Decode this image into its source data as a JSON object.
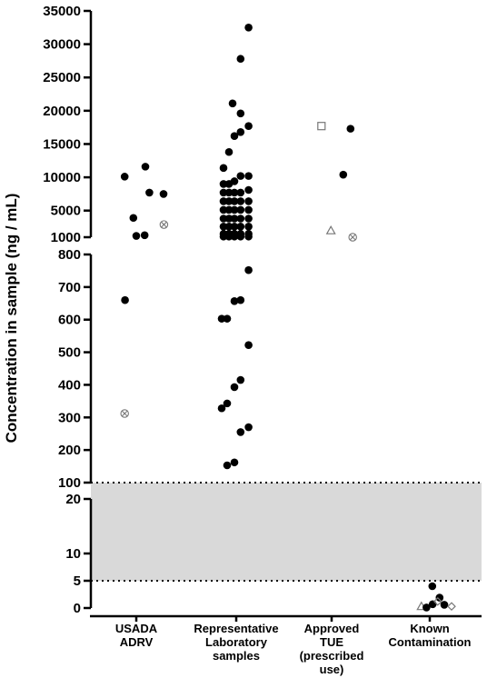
{
  "chart_data": {
    "type": "scatter",
    "ylabel": "Concentration in sample (ng / mL)",
    "categories": [
      [
        "USADA",
        "ADRV"
      ],
      [
        "Representative",
        "Laboratory",
        "samples"
      ],
      [
        "Approved",
        "TUE",
        "(prescribed",
        "use)"
      ],
      [
        "Known",
        "Contamination"
      ]
    ],
    "y_segments": [
      {
        "name": "low",
        "range": [
          0,
          20
        ],
        "ticks": [
          0,
          5,
          10,
          20
        ],
        "tick_labels": [
          "0",
          "5",
          "10",
          "20"
        ]
      },
      {
        "name": "mid",
        "range": [
          100,
          800
        ],
        "ticks": [
          100,
          200,
          300,
          400,
          500,
          600,
          700,
          800
        ],
        "tick_labels": [
          "100",
          "200",
          "300",
          "400",
          "500",
          "600",
          "700",
          "800"
        ]
      },
      {
        "name": "high",
        "range": [
          1000,
          35000
        ],
        "ticks": [
          1000,
          5000,
          10000,
          15000,
          20000,
          25000,
          30000,
          35000
        ],
        "tick_labels": [
          "1000",
          "5000",
          "10000",
          "15000",
          "20000",
          "25000",
          "30000",
          "35000"
        ]
      }
    ],
    "shaded_band": [
      5,
      100
    ],
    "dotted_lines": [
      5,
      100
    ],
    "points": [
      {
        "c": 0,
        "dx": -0.32,
        "y": 10100,
        "m": "filled"
      },
      {
        "c": 0,
        "dx": 0.25,
        "y": 11600,
        "m": "filled"
      },
      {
        "c": 0,
        "dx": -0.08,
        "y": 3900,
        "m": "filled"
      },
      {
        "c": 0,
        "dx": 0.36,
        "y": 7700,
        "m": "filled"
      },
      {
        "c": 0,
        "dx": 0.75,
        "y": 7500,
        "m": "filled"
      },
      {
        "c": 0,
        "dx": 0.0,
        "y": 1200,
        "m": "filled"
      },
      {
        "c": 0,
        "dx": 0.23,
        "y": 1300,
        "m": "filled"
      },
      {
        "c": 0,
        "dx": 0.76,
        "y": 2900,
        "m": "circle-x"
      },
      {
        "c": 0,
        "dx": -0.31,
        "y": 660,
        "m": "filled"
      },
      {
        "c": 0,
        "dx": -0.32,
        "y": 312,
        "m": "circle-x"
      },
      {
        "c": 1,
        "dx": 0.34,
        "y": 32500,
        "m": "filled"
      },
      {
        "c": 1,
        "dx": 0.12,
        "y": 27800,
        "m": "filled"
      },
      {
        "c": 1,
        "dx": -0.1,
        "y": 21100,
        "m": "filled"
      },
      {
        "c": 1,
        "dx": 0.12,
        "y": 19600,
        "m": "filled"
      },
      {
        "c": 1,
        "dx": 0.34,
        "y": 17700,
        "m": "filled"
      },
      {
        "c": 1,
        "dx": 0.12,
        "y": 16800,
        "m": "filled"
      },
      {
        "c": 1,
        "dx": -0.05,
        "y": 16200,
        "m": "filled"
      },
      {
        "c": 1,
        "dx": -0.2,
        "y": 13800,
        "m": "filled"
      },
      {
        "c": 1,
        "dx": -0.35,
        "y": 11400,
        "m": "filled"
      },
      {
        "c": 1,
        "dx": -0.35,
        "y": 9000,
        "m": "filled"
      },
      {
        "c": 1,
        "dx": -0.2,
        "y": 9000,
        "m": "filled"
      },
      {
        "c": 1,
        "dx": -0.05,
        "y": 9400,
        "m": "filled"
      },
      {
        "c": 1,
        "dx": 0.12,
        "y": 10200,
        "m": "filled"
      },
      {
        "c": 1,
        "dx": 0.34,
        "y": 10200,
        "m": "filled"
      },
      {
        "c": 1,
        "dx": -0.35,
        "y": 7700,
        "m": "filled"
      },
      {
        "c": 1,
        "dx": -0.2,
        "y": 7700,
        "m": "filled"
      },
      {
        "c": 1,
        "dx": -0.05,
        "y": 7700,
        "m": "filled"
      },
      {
        "c": 1,
        "dx": 0.12,
        "y": 7700,
        "m": "filled"
      },
      {
        "c": 1,
        "dx": 0.34,
        "y": 8100,
        "m": "filled"
      },
      {
        "c": 1,
        "dx": -0.35,
        "y": 6400,
        "m": "filled"
      },
      {
        "c": 1,
        "dx": -0.2,
        "y": 6400,
        "m": "filled"
      },
      {
        "c": 1,
        "dx": -0.05,
        "y": 6400,
        "m": "filled"
      },
      {
        "c": 1,
        "dx": 0.12,
        "y": 6400,
        "m": "filled"
      },
      {
        "c": 1,
        "dx": 0.34,
        "y": 6400,
        "m": "filled"
      },
      {
        "c": 1,
        "dx": -0.35,
        "y": 5100,
        "m": "filled"
      },
      {
        "c": 1,
        "dx": -0.2,
        "y": 5100,
        "m": "filled"
      },
      {
        "c": 1,
        "dx": -0.05,
        "y": 5100,
        "m": "filled"
      },
      {
        "c": 1,
        "dx": 0.12,
        "y": 5100,
        "m": "filled"
      },
      {
        "c": 1,
        "dx": 0.34,
        "y": 5100,
        "m": "filled"
      },
      {
        "c": 1,
        "dx": -0.35,
        "y": 3800,
        "m": "filled"
      },
      {
        "c": 1,
        "dx": -0.2,
        "y": 3800,
        "m": "filled"
      },
      {
        "c": 1,
        "dx": -0.05,
        "y": 3800,
        "m": "filled"
      },
      {
        "c": 1,
        "dx": 0.12,
        "y": 3800,
        "m": "filled"
      },
      {
        "c": 1,
        "dx": 0.34,
        "y": 3800,
        "m": "filled"
      },
      {
        "c": 1,
        "dx": -0.35,
        "y": 2600,
        "m": "filled"
      },
      {
        "c": 1,
        "dx": -0.2,
        "y": 2600,
        "m": "filled"
      },
      {
        "c": 1,
        "dx": -0.05,
        "y": 2600,
        "m": "filled"
      },
      {
        "c": 1,
        "dx": 0.12,
        "y": 2600,
        "m": "filled"
      },
      {
        "c": 1,
        "dx": 0.34,
        "y": 2600,
        "m": "filled"
      },
      {
        "c": 1,
        "dx": -0.35,
        "y": 1500,
        "m": "filled"
      },
      {
        "c": 1,
        "dx": -0.2,
        "y": 1500,
        "m": "filled"
      },
      {
        "c": 1,
        "dx": -0.05,
        "y": 1500,
        "m": "filled"
      },
      {
        "c": 1,
        "dx": 0.12,
        "y": 1500,
        "m": "filled"
      },
      {
        "c": 1,
        "dx": 0.34,
        "y": 1500,
        "m": "filled"
      },
      {
        "c": 1,
        "dx": -0.35,
        "y": 1100,
        "m": "filled"
      },
      {
        "c": 1,
        "dx": -0.2,
        "y": 1100,
        "m": "filled"
      },
      {
        "c": 1,
        "dx": -0.05,
        "y": 1100,
        "m": "filled"
      },
      {
        "c": 1,
        "dx": 0.12,
        "y": 1100,
        "m": "filled"
      },
      {
        "c": 1,
        "dx": 0.34,
        "y": 1100,
        "m": "filled"
      },
      {
        "c": 1,
        "dx": 0.34,
        "y": 752,
        "m": "filled"
      },
      {
        "c": 1,
        "dx": -0.05,
        "y": 657,
        "m": "filled"
      },
      {
        "c": 1,
        "dx": 0.12,
        "y": 660,
        "m": "filled"
      },
      {
        "c": 1,
        "dx": -0.4,
        "y": 603,
        "m": "filled"
      },
      {
        "c": 1,
        "dx": -0.25,
        "y": 603,
        "m": "filled"
      },
      {
        "c": 1,
        "dx": 0.34,
        "y": 522,
        "m": "filled"
      },
      {
        "c": 1,
        "dx": 0.12,
        "y": 415,
        "m": "filled"
      },
      {
        "c": 1,
        "dx": -0.05,
        "y": 393,
        "m": "filled"
      },
      {
        "c": 1,
        "dx": -0.25,
        "y": 343,
        "m": "filled"
      },
      {
        "c": 1,
        "dx": -0.4,
        "y": 328,
        "m": "filled"
      },
      {
        "c": 1,
        "dx": 0.34,
        "y": 270,
        "m": "filled"
      },
      {
        "c": 1,
        "dx": 0.12,
        "y": 255,
        "m": "filled"
      },
      {
        "c": 1,
        "dx": -0.05,
        "y": 162,
        "m": "filled"
      },
      {
        "c": 1,
        "dx": -0.25,
        "y": 153,
        "m": "filled"
      },
      {
        "c": 2,
        "dx": -0.28,
        "y": 17700,
        "m": "square"
      },
      {
        "c": 2,
        "dx": 0.52,
        "y": 17300,
        "m": "filled"
      },
      {
        "c": 2,
        "dx": 0.32,
        "y": 10400,
        "m": "filled"
      },
      {
        "c": 2,
        "dx": -0.02,
        "y": 2000,
        "m": "triangle"
      },
      {
        "c": 2,
        "dx": 0.58,
        "y": 1000,
        "m": "circle-x"
      },
      {
        "c": 3,
        "dx": 0.07,
        "y": 4.0,
        "m": "filled"
      },
      {
        "c": 3,
        "dx": 0.27,
        "y": 1.9,
        "m": "filled"
      },
      {
        "c": 3,
        "dx": -0.23,
        "y": 0.3,
        "m": "triangle"
      },
      {
        "c": 3,
        "dx": -0.09,
        "y": 0.1,
        "m": "filled"
      },
      {
        "c": 3,
        "dx": 0.08,
        "y": 0.7,
        "m": "filled"
      },
      {
        "c": 3,
        "dx": 0.22,
        "y": 1.2,
        "m": "diamond"
      },
      {
        "c": 3,
        "dx": 0.4,
        "y": 0.6,
        "m": "filled"
      },
      {
        "c": 3,
        "dx": 0.6,
        "y": 0.3,
        "m": "diamond"
      }
    ]
  }
}
